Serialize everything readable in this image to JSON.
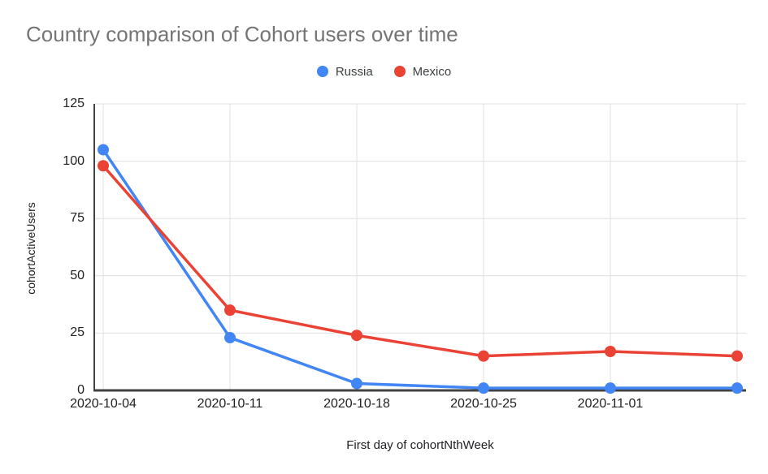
{
  "chart_data": {
    "type": "line",
    "title": "Country comparison of Cohort users over time",
    "xlabel": "First day of cohortNthWeek",
    "ylabel": "cohortActiveUsers",
    "categories": [
      "2020-10-04",
      "2020-10-11",
      "2020-10-18",
      "2020-10-25",
      "2020-11-01",
      ""
    ],
    "series": [
      {
        "name": "Russia",
        "color": "#4285F4",
        "values": [
          105,
          23,
          3,
          1,
          1,
          1
        ]
      },
      {
        "name": "Mexico",
        "color": "#EA4335",
        "values": [
          98,
          35,
          24,
          15,
          17,
          15
        ]
      }
    ],
    "yticks": [
      0,
      25,
      50,
      75,
      100,
      125
    ],
    "ylim": [
      0,
      125
    ],
    "grid": true,
    "legend_position": "top",
    "colors": {
      "grid": "#e0e0e0",
      "axis": "#424242",
      "title": "#757575",
      "text": "#202124",
      "legend_text": "#3c4043"
    }
  }
}
